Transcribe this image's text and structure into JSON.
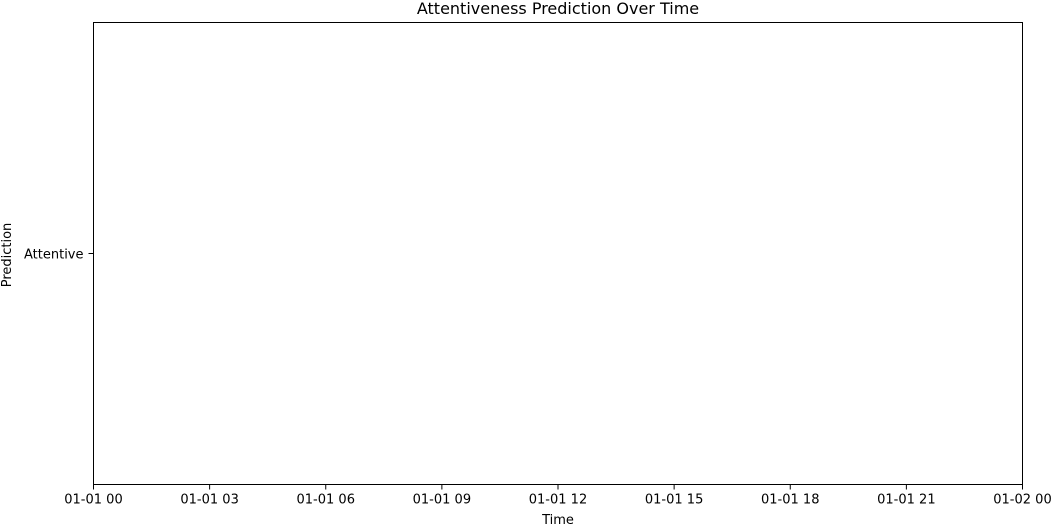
{
  "chart_data": {
    "type": "line",
    "title": "Attentiveness Prediction Over Time",
    "xlabel": "Time",
    "ylabel": "Prediction",
    "x_ticks": [
      "01-01 00",
      "01-01 03",
      "01-01 06",
      "01-01 09",
      "01-01 12",
      "01-01 15",
      "01-01 18",
      "01-01 21",
      "01-02 00"
    ],
    "y_categories": [
      "Attentive"
    ],
    "xlim": [
      "01-01 00",
      "01-02 00"
    ],
    "series": [
      {
        "values": []
      }
    ],
    "grid": false,
    "line_color": "#1f77b4"
  }
}
